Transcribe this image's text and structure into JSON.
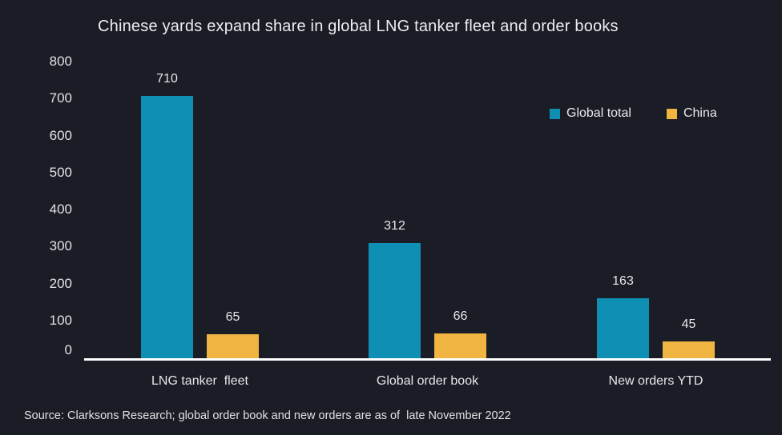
{
  "title": "Chinese yards expand share in global LNG tanker fleet and order books",
  "source": "Source: Clarksons Research; global order book and new orders are as of  late November 2022",
  "colors": {
    "background": "#1a1d26",
    "global_total": "#0f8fb4",
    "china": "#f0b441",
    "axis_line": "#fdfdfd",
    "text": "#e6e7e9"
  },
  "legend": {
    "items": [
      {
        "label": "Global total",
        "color": "#0f8fb4"
      },
      {
        "label": "China",
        "color": "#f0b441"
      }
    ]
  },
  "chart_data": {
    "type": "bar",
    "title": "Chinese yards expand share in global LNG tanker fleet and order books",
    "categories": [
      "LNG tanker  fleet",
      "Global order book",
      "New orders YTD"
    ],
    "series": [
      {
        "name": "Global total",
        "color": "#0f8fb4",
        "values": [
          710,
          312,
          163
        ]
      },
      {
        "name": "China",
        "color": "#f0b441",
        "values": [
          65,
          66,
          45
        ]
      }
    ],
    "xlabel": "",
    "ylabel": "",
    "ylim": [
      0,
      800
    ],
    "yticks": [
      0,
      100,
      200,
      300,
      400,
      500,
      600,
      700,
      800
    ],
    "grid": false,
    "legend_position": "top-right",
    "value_labels": true,
    "source": "Source: Clarksons Research; global order book and new orders are as of  late November 2022"
  }
}
